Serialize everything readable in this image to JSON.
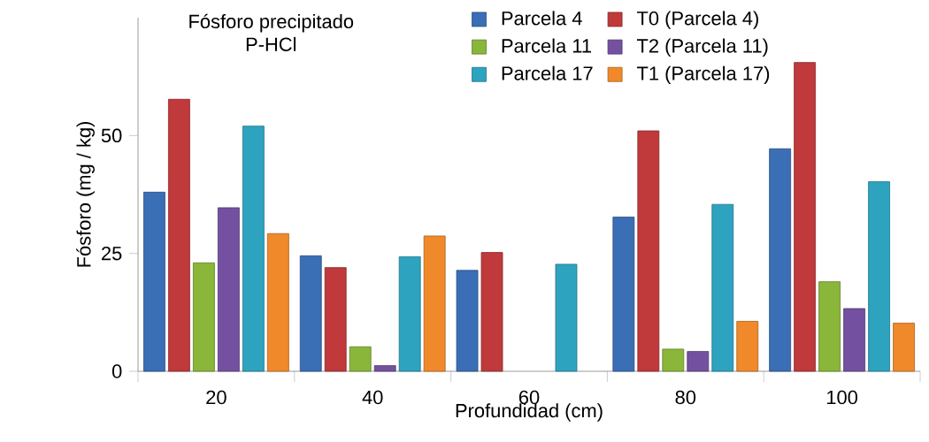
{
  "chart_data": {
    "type": "bar",
    "title": "Fósforo precipitado",
    "subtitle": "P-HCl",
    "xlabel": "Profundidad (cm)",
    "ylabel": "Fósforo (mg / kg)",
    "categories": [
      "20",
      "40",
      "60",
      "80",
      "100"
    ],
    "series": [
      {
        "name": "Parcela 4",
        "color": "#3a6eb5",
        "values": [
          38,
          24.5,
          21.4,
          32.7,
          47.2
        ]
      },
      {
        "name": "T0 (Parcela 4)",
        "color": "#c0393b",
        "values": [
          57.7,
          22,
          25.2,
          51,
          65.5
        ]
      },
      {
        "name": "Parcela 11",
        "color": "#8ab63a",
        "values": [
          23,
          5.2,
          null,
          4.7,
          19
        ]
      },
      {
        "name": "T2 (Parcela 11)",
        "color": "#7451a0",
        "values": [
          34.7,
          1.2,
          null,
          4.2,
          13.3
        ]
      },
      {
        "name": "Parcela 17",
        "color": "#2ea3c0",
        "values": [
          52,
          24.3,
          22.7,
          35.4,
          40.2
        ]
      },
      {
        "name": "T1 (Parcela 17)",
        "color": "#f0892a",
        "values": [
          29.2,
          28.7,
          null,
          10.6,
          10.2
        ]
      }
    ],
    "ylim": [
      0,
      75
    ],
    "yticks": [
      0,
      25,
      50
    ],
    "legend": "top right"
  }
}
